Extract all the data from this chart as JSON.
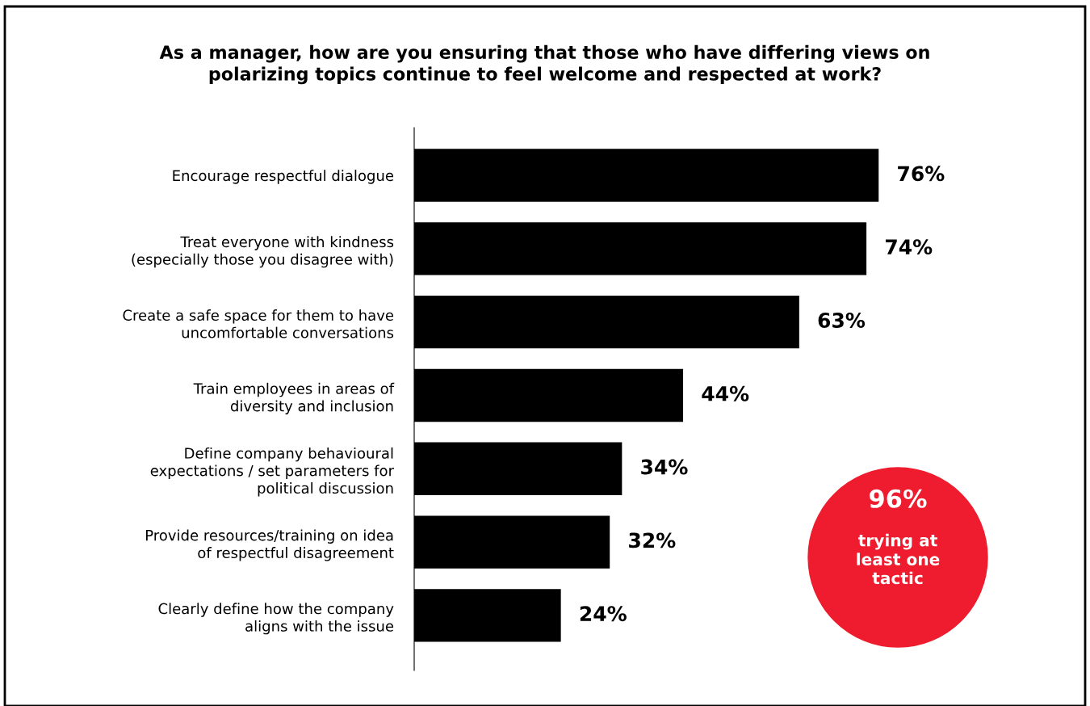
{
  "chart_data": {
    "type": "bar",
    "orientation": "horizontal",
    "title": "As a manager, how are you ensuring that those who have differing views on\npolarizing topics continue to feel welcome and respected at work?",
    "categories": [
      "Encourage respectful dialogue",
      "Treat everyone with kindness\n(especially those you disagree with)",
      "Create a safe space for them to have\nuncomfortable conversations",
      "Train employees in areas of\ndiversity and inclusion",
      "Define company behavioural\nexpectations / set parameters for\npolitical discussion",
      "Provide resources/training on idea\nof respectful disagreement",
      "Clearly define how the company\naligns with the issue"
    ],
    "values": [
      76,
      74,
      63,
      44,
      34,
      32,
      24
    ],
    "value_labels": [
      "76%",
      "74%",
      "63%",
      "44%",
      "34%",
      "32%",
      "24%"
    ],
    "color": "#000000",
    "tick_labels": "y",
    "grid": false,
    "legend": false,
    "annotations": [
      "96%",
      "trying at\nleast one\ntactic"
    ]
  }
}
